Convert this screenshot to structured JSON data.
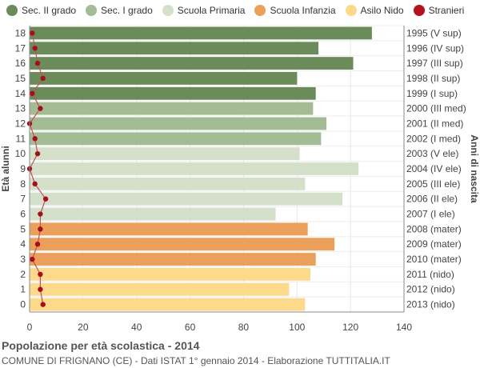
{
  "legend": [
    {
      "label": "Sec. II grado",
      "color": "#6b8c5a"
    },
    {
      "label": "Sec. I grado",
      "color": "#a3bc93"
    },
    {
      "label": "Scuola Primaria",
      "color": "#d5e0cb"
    },
    {
      "label": "Scuola Infanzia",
      "color": "#ea9f5a"
    },
    {
      "label": "Asilo Nido",
      "color": "#fdd98b"
    },
    {
      "label": "Stranieri",
      "color": "#b5121b"
    }
  ],
  "footer": {
    "title": "Popolazione per età scolastica - 2014",
    "subtitle": "COMUNE DI FRIGNANO (CE) - Dati ISTAT 1° gennaio 2014 - Elaborazione TUTTITALIA.IT"
  },
  "chart_data": {
    "type": "bar",
    "orientation": "horizontal",
    "ylabel": "Età alunni",
    "ylabel_right": "Anni di nascita",
    "xlim": [
      0,
      140
    ],
    "xticks": [
      0,
      20,
      40,
      60,
      80,
      100,
      120,
      140
    ],
    "grid": true,
    "ages": [
      18,
      17,
      16,
      15,
      14,
      13,
      12,
      11,
      10,
      9,
      8,
      7,
      6,
      5,
      4,
      3,
      2,
      1,
      0
    ],
    "birth_years": [
      "1995 (V sup)",
      "1996 (IV sup)",
      "1997 (III sup)",
      "1998 (II sup)",
      "1999 (I sup)",
      "2000 (III med)",
      "2001 (II med)",
      "2002 (I med)",
      "2003 (V ele)",
      "2004 (IV ele)",
      "2005 (III ele)",
      "2006 (II ele)",
      "2007 (I ele)",
      "2008 (mater)",
      "2009 (mater)",
      "2010 (mater)",
      "2011 (nido)",
      "2012 (nido)",
      "2013 (nido)"
    ],
    "values": [
      128,
      108,
      121,
      100,
      107,
      106,
      111,
      109,
      101,
      123,
      103,
      117,
      92,
      104,
      114,
      107,
      105,
      97,
      103
    ],
    "categories": [
      "Sec. II grado",
      "Sec. II grado",
      "Sec. II grado",
      "Sec. II grado",
      "Sec. II grado",
      "Sec. I grado",
      "Sec. I grado",
      "Sec. I grado",
      "Scuola Primaria",
      "Scuola Primaria",
      "Scuola Primaria",
      "Scuola Primaria",
      "Scuola Primaria",
      "Scuola Infanzia",
      "Scuola Infanzia",
      "Scuola Infanzia",
      "Asilo Nido",
      "Asilo Nido",
      "Asilo Nido"
    ],
    "stranieri": [
      1,
      2,
      3,
      5,
      1,
      4,
      0,
      2,
      3,
      0,
      2,
      6,
      4,
      4,
      3,
      1,
      4,
      4,
      5
    ]
  }
}
